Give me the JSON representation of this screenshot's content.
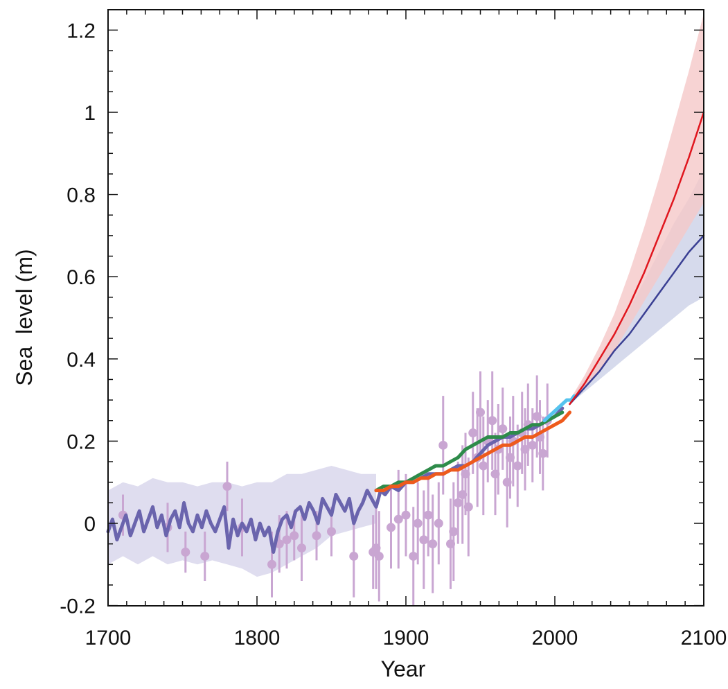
{
  "chart_data": {
    "type": "line",
    "title": "",
    "xlabel": "Year",
    "ylabel": "Sea  level (m)",
    "xlim": [
      1700,
      2100
    ],
    "ylim": [
      -0.2,
      1.25
    ],
    "x_ticks": [
      1700,
      1800,
      1900,
      2000,
      2100
    ],
    "x_tick_labels": [
      "1700",
      "1800",
      "1900",
      "2000",
      "2100"
    ],
    "y_ticks": [
      -0.2,
      0,
      0.2,
      0.4,
      0.6,
      0.8,
      1,
      1.2
    ],
    "y_tick_labels": [
      "-0.2",
      "0",
      "0.2",
      "0.4",
      "0.6",
      "0.8",
      "1",
      "1.2"
    ],
    "grid": false,
    "legend": "none",
    "colors": {
      "reconstruction": "#6a64ad",
      "reconstruction_band": "#d7d4eb",
      "proxy_points": "#c9a6d2",
      "green": "#2e8b4a",
      "orange": "#ee5a1c",
      "cyan": "#55c3ee",
      "projection_high": "#e0161e",
      "projection_high_band": "#f5c8c8",
      "projection_low": "#3a3f93",
      "projection_low_band": "#ccd1e7"
    },
    "series": [
      {
        "kind": "band",
        "color_key": "reconstruction_band",
        "x": [
          1700,
          1710,
          1720,
          1730,
          1740,
          1750,
          1760,
          1770,
          1780,
          1790,
          1800,
          1810,
          1820,
          1830,
          1840,
          1850,
          1860,
          1870,
          1880
        ],
        "lower": [
          -0.1,
          -0.08,
          -0.1,
          -0.08,
          -0.1,
          -0.09,
          -0.1,
          -0.09,
          -0.1,
          -0.11,
          -0.13,
          -0.12,
          -0.1,
          -0.08,
          -0.06,
          -0.03,
          -0.02,
          -0.01,
          0.0
        ],
        "upper": [
          0.08,
          0.1,
          0.09,
          0.11,
          0.1,
          0.1,
          0.09,
          0.1,
          0.1,
          0.09,
          0.1,
          0.1,
          0.12,
          0.12,
          0.13,
          0.14,
          0.13,
          0.12,
          0.12
        ]
      },
      {
        "kind": "line",
        "color_key": "reconstruction",
        "width": 5,
        "x": [
          1700,
          1703,
          1706,
          1709,
          1712,
          1715,
          1718,
          1721,
          1724,
          1727,
          1730,
          1733,
          1736,
          1739,
          1742,
          1745,
          1748,
          1751,
          1754,
          1757,
          1760,
          1763,
          1766,
          1769,
          1772,
          1775,
          1778,
          1781,
          1784,
          1787,
          1790,
          1793,
          1796,
          1799,
          1802,
          1805,
          1808,
          1811,
          1814,
          1817,
          1820,
          1823,
          1826,
          1829,
          1832,
          1835,
          1838,
          1841,
          1844,
          1847,
          1850,
          1853,
          1856,
          1859,
          1862,
          1865,
          1868,
          1871,
          1874,
          1877,
          1880,
          1883,
          1886,
          1890,
          1895,
          1900,
          1905,
          1910,
          1915,
          1920,
          1925,
          1930,
          1935,
          1940,
          1945,
          1950,
          1955,
          1960,
          1965,
          1970,
          1975,
          1980,
          1985,
          1990,
          1995,
          2000,
          2005
        ],
        "y": [
          -0.02,
          0.01,
          -0.04,
          -0.01,
          0.02,
          -0.03,
          0.0,
          0.03,
          -0.02,
          0.01,
          0.04,
          -0.01,
          0.02,
          -0.03,
          0.01,
          0.03,
          -0.01,
          0.05,
          0.0,
          -0.02,
          0.02,
          -0.01,
          0.03,
          0.0,
          -0.02,
          0.01,
          0.04,
          -0.06,
          0.01,
          -0.03,
          0.0,
          -0.02,
          0.01,
          -0.04,
          0.0,
          -0.03,
          -0.01,
          -0.07,
          -0.02,
          0.01,
          0.02,
          -0.01,
          0.03,
          0.04,
          0.01,
          0.05,
          0.03,
          0.0,
          0.06,
          0.04,
          0.02,
          0.07,
          0.05,
          0.03,
          0.06,
          0.0,
          0.03,
          0.05,
          0.08,
          0.06,
          0.04,
          0.08,
          0.07,
          0.09,
          0.08,
          0.1,
          0.1,
          0.11,
          0.12,
          0.12,
          0.12,
          0.13,
          0.14,
          0.14,
          0.15,
          0.17,
          0.19,
          0.2,
          0.21,
          0.21,
          0.22,
          0.23,
          0.23,
          0.24,
          0.25,
          0.26,
          0.28
        ]
      },
      {
        "kind": "line",
        "color_key": "green",
        "width": 5,
        "x": [
          1880,
          1885,
          1890,
          1895,
          1900,
          1905,
          1910,
          1915,
          1920,
          1925,
          1930,
          1935,
          1940,
          1945,
          1950,
          1955,
          1960,
          1965,
          1970,
          1975,
          1980,
          1985,
          1990,
          1995,
          2000,
          2005
        ],
        "y": [
          0.08,
          0.09,
          0.09,
          0.1,
          0.1,
          0.11,
          0.12,
          0.13,
          0.14,
          0.14,
          0.15,
          0.16,
          0.18,
          0.19,
          0.2,
          0.21,
          0.21,
          0.21,
          0.22,
          0.22,
          0.23,
          0.24,
          0.24,
          0.25,
          0.26,
          0.27
        ]
      },
      {
        "kind": "line",
        "color_key": "orange",
        "width": 5,
        "x": [
          1880,
          1885,
          1890,
          1895,
          1900,
          1905,
          1910,
          1915,
          1920,
          1925,
          1930,
          1935,
          1940,
          1945,
          1950,
          1955,
          1960,
          1965,
          1970,
          1975,
          1980,
          1985,
          1990,
          1995,
          2000,
          2005,
          2010
        ],
        "y": [
          0.08,
          0.08,
          0.09,
          0.09,
          0.1,
          0.1,
          0.11,
          0.11,
          0.12,
          0.12,
          0.13,
          0.13,
          0.14,
          0.15,
          0.16,
          0.17,
          0.18,
          0.19,
          0.19,
          0.2,
          0.21,
          0.21,
          0.22,
          0.23,
          0.24,
          0.25,
          0.27
        ]
      },
      {
        "kind": "line",
        "color_key": "cyan",
        "width": 5,
        "x": [
          1993,
          1996,
          1999,
          2002,
          2005,
          2008,
          2011,
          2013
        ],
        "y": [
          0.25,
          0.26,
          0.27,
          0.28,
          0.29,
          0.3,
          0.3,
          0.31
        ]
      },
      {
        "kind": "band",
        "color_key": "projection_low_band",
        "x": [
          2010,
          2020,
          2030,
          2040,
          2050,
          2060,
          2070,
          2080,
          2090,
          2100
        ],
        "lower": [
          0.29,
          0.32,
          0.35,
          0.38,
          0.41,
          0.44,
          0.47,
          0.5,
          0.53,
          0.55
        ],
        "upper": [
          0.3,
          0.35,
          0.4,
          0.46,
          0.52,
          0.59,
          0.66,
          0.73,
          0.79,
          0.86
        ]
      },
      {
        "kind": "band",
        "color_key": "projection_high_band",
        "x": [
          2010,
          2020,
          2030,
          2040,
          2050,
          2060,
          2070,
          2080,
          2090,
          2100
        ],
        "lower": [
          0.29,
          0.33,
          0.37,
          0.42,
          0.48,
          0.54,
          0.6,
          0.66,
          0.72,
          0.78
        ],
        "upper": [
          0.3,
          0.36,
          0.43,
          0.51,
          0.61,
          0.72,
          0.84,
          0.97,
          1.1,
          1.24
        ]
      },
      {
        "kind": "line",
        "color_key": "projection_low",
        "width": 2.5,
        "x": [
          2010,
          2020,
          2030,
          2040,
          2050,
          2060,
          2070,
          2080,
          2090,
          2100
        ],
        "y": [
          0.29,
          0.33,
          0.37,
          0.42,
          0.46,
          0.51,
          0.56,
          0.61,
          0.66,
          0.7
        ]
      },
      {
        "kind": "line",
        "color_key": "projection_high",
        "width": 2.5,
        "x": [
          2010,
          2020,
          2030,
          2040,
          2050,
          2060,
          2070,
          2080,
          2090,
          2100
        ],
        "y": [
          0.29,
          0.34,
          0.4,
          0.46,
          0.53,
          0.61,
          0.7,
          0.79,
          0.89,
          1.0
        ]
      }
    ],
    "proxy_points": {
      "color_key": "proxy_points",
      "x": [
        1710,
        1740,
        1752,
        1765,
        1780,
        1790,
        1810,
        1815,
        1820,
        1825,
        1830,
        1840,
        1850,
        1865,
        1878,
        1880,
        1882,
        1890,
        1895,
        1900,
        1905,
        1908,
        1912,
        1915,
        1918,
        1922,
        1925,
        1930,
        1932,
        1935,
        1938,
        1940,
        1942,
        1945,
        1948,
        1950,
        1952,
        1955,
        1958,
        1960,
        1962,
        1965,
        1968,
        1970,
        1972,
        1975,
        1978,
        1980,
        1982,
        1985,
        1988,
        1990,
        1992,
        1995
      ],
      "y": [
        0.02,
        -0.01,
        -0.07,
        -0.08,
        0.09,
        -0.01,
        -0.1,
        -0.05,
        -0.04,
        -0.03,
        -0.06,
        -0.03,
        -0.02,
        -0.08,
        -0.07,
        -0.06,
        -0.08,
        -0.01,
        0.01,
        0.02,
        -0.08,
        0.0,
        -0.04,
        0.02,
        -0.05,
        0.0,
        0.19,
        -0.05,
        -0.02,
        0.05,
        0.07,
        0.12,
        0.04,
        0.22,
        0.16,
        0.27,
        0.14,
        0.2,
        0.25,
        0.12,
        0.18,
        0.23,
        0.1,
        0.16,
        0.2,
        0.14,
        0.22,
        0.18,
        0.24,
        0.19,
        0.26,
        0.21,
        0.17,
        0.25
      ],
      "err": [
        0.05,
        0.06,
        0.05,
        0.06,
        0.06,
        0.07,
        0.08,
        0.07,
        0.07,
        0.06,
        0.08,
        0.06,
        0.06,
        0.1,
        0.09,
        0.1,
        0.11,
        0.1,
        0.12,
        0.1,
        0.12,
        0.1,
        0.12,
        0.1,
        0.12,
        0.1,
        0.12,
        0.11,
        0.12,
        0.1,
        0.12,
        0.1,
        0.12,
        0.1,
        0.12,
        0.1,
        0.12,
        0.1,
        0.12,
        0.1,
        0.11,
        0.1,
        0.11,
        0.1,
        0.11,
        0.1,
        0.1,
        0.1,
        0.1,
        0.09,
        0.1,
        0.09,
        0.09,
        0.09
      ]
    }
  }
}
